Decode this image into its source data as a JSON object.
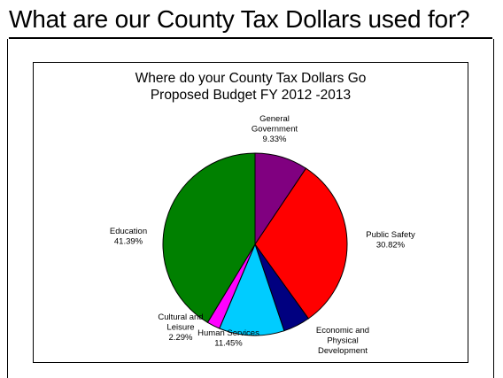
{
  "slide": {
    "title": "What are our County Tax Dollars used for?"
  },
  "chart_data": {
    "type": "pie",
    "title": "Where do your County Tax Dollars Go",
    "subtitle": "Proposed Budget FY 2012 -2013",
    "slices": [
      {
        "label_lines": [
          "General",
          "Government"
        ],
        "pct_label": "9.33%",
        "value": 9.33,
        "color": "#800080"
      },
      {
        "label_lines": [
          "Public Safety"
        ],
        "pct_label": "30.82%",
        "value": 30.82,
        "color": "#ff0000"
      },
      {
        "label_lines": [
          "Economic and",
          "Physical",
          "Development"
        ],
        "pct_label": "",
        "value": 4.72,
        "color": "#000080"
      },
      {
        "label_lines": [
          "Human Services"
        ],
        "pct_label": "11.45%",
        "value": 11.45,
        "color": "#00ccff"
      },
      {
        "label_lines": [
          "Cultural and",
          "Leisure"
        ],
        "pct_label": "2.29%",
        "value": 2.29,
        "color": "#ff00ff"
      },
      {
        "label_lines": [
          "Education"
        ],
        "pct_label": "41.39%",
        "value": 41.39,
        "color": "#008000"
      }
    ]
  }
}
